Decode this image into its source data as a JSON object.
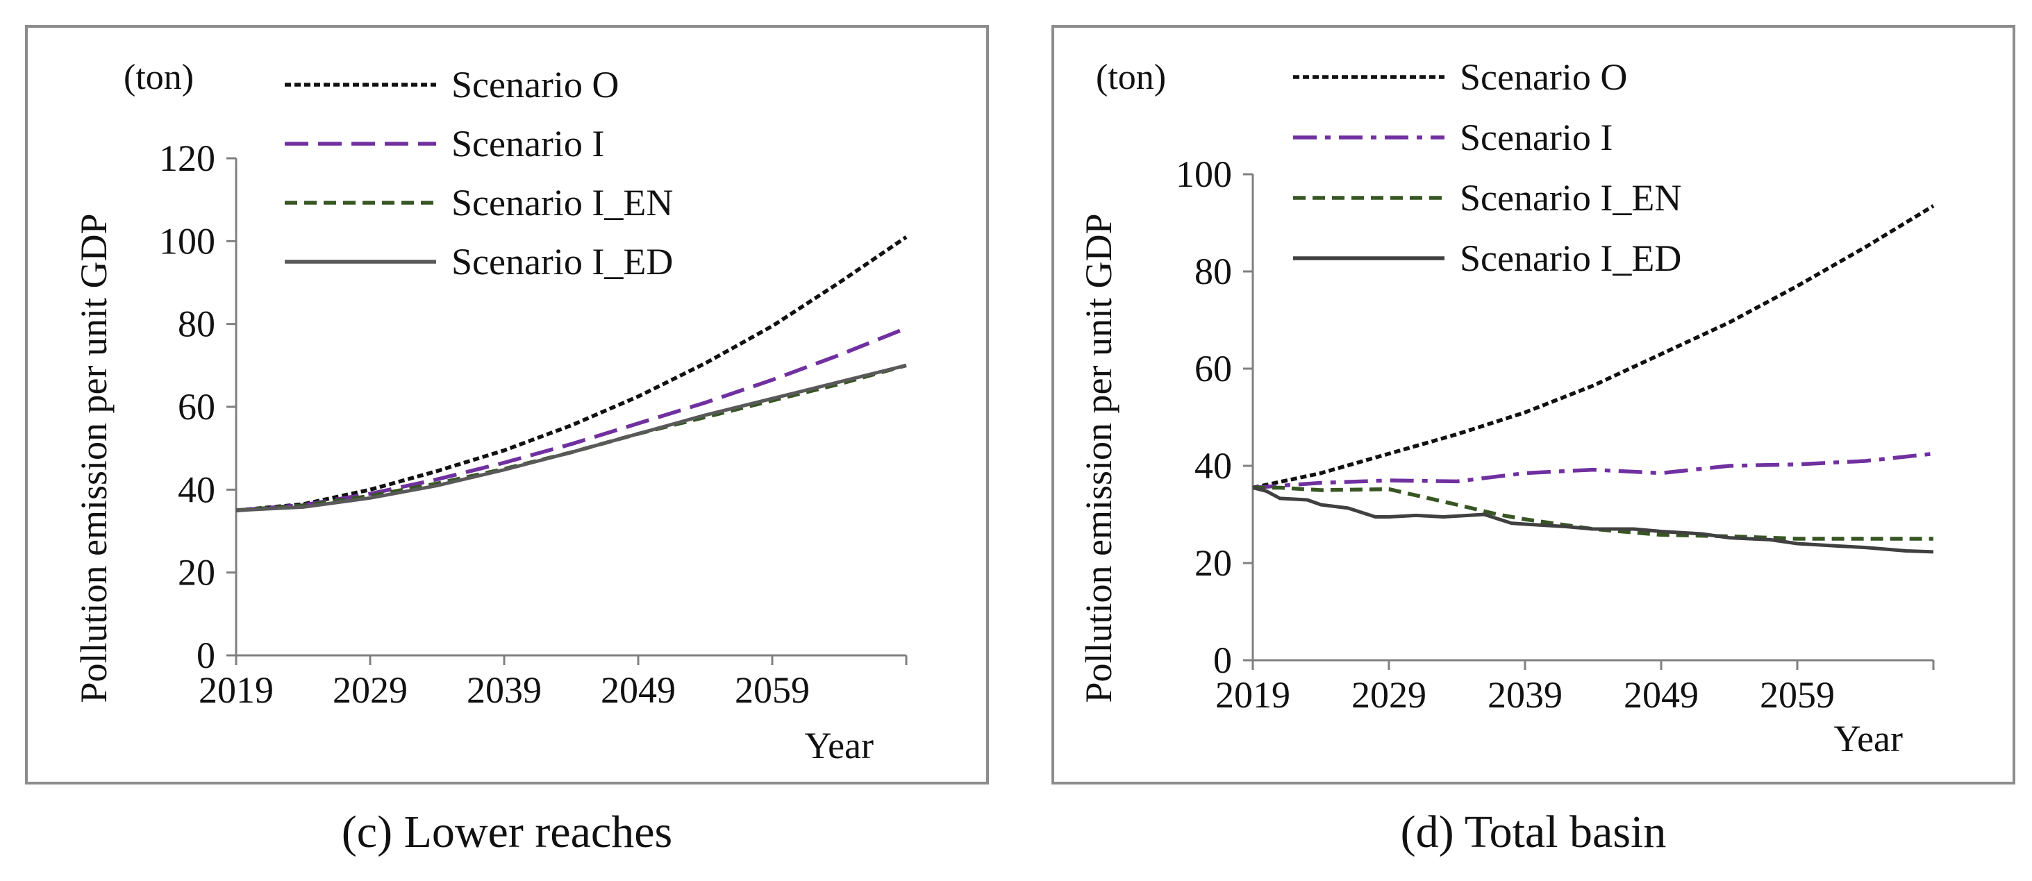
{
  "chart_data": [
    {
      "type": "line",
      "caption": "(c) Lower reaches",
      "unit_label": "(ton)",
      "ylabel": "Pollution emission per unit GDP",
      "xlabel": "Year",
      "ylim": [
        0,
        120
      ],
      "yticks": [
        0,
        20,
        40,
        60,
        80,
        100,
        120
      ],
      "xlim": [
        2019,
        2069
      ],
      "xticks": [
        2019,
        2029,
        2039,
        2049,
        2059
      ],
      "legend_position": "top-left",
      "grid": false,
      "series": [
        {
          "name": "Scenario O",
          "color": "#111111",
          "dash": "dotted",
          "x": [
            2019,
            2024,
            2029,
            2034,
            2039,
            2044,
            2049,
            2054,
            2059,
            2064,
            2069
          ],
          "y": [
            35,
            36.5,
            40,
            44.5,
            49.5,
            55.5,
            62.5,
            70.5,
            79.5,
            90,
            101
          ]
        },
        {
          "name": "Scenario I",
          "color": "#7030a0",
          "dash": "long-dash",
          "x": [
            2019,
            2024,
            2029,
            2034,
            2039,
            2044,
            2049,
            2054,
            2059,
            2064,
            2069
          ],
          "y": [
            35,
            36.3,
            39,
            42.5,
            46.5,
            51,
            56,
            61,
            66.5,
            72.5,
            79
          ]
        },
        {
          "name": "Scenario I_EN",
          "color": "#375623",
          "dash": "short-dash",
          "x": [
            2019,
            2024,
            2029,
            2034,
            2039,
            2044,
            2049,
            2054,
            2059,
            2064,
            2069
          ],
          "y": [
            35,
            36.2,
            38.5,
            41.5,
            45,
            49,
            53.5,
            57.5,
            61.5,
            65.5,
            70
          ]
        },
        {
          "name": "Scenario I_ED",
          "color": "#595959",
          "dash": "solid",
          "x": [
            2019,
            2024,
            2029,
            2034,
            2039,
            2044,
            2049,
            2054,
            2059,
            2064,
            2069
          ],
          "y": [
            35,
            35.8,
            38,
            41,
            44.8,
            49,
            53.5,
            58,
            62,
            66,
            70
          ]
        }
      ]
    },
    {
      "type": "line",
      "caption": "(d) Total basin",
      "unit_label": "(ton)",
      "ylabel": "Pollution emission per unit GDP",
      "xlabel": "Year",
      "ylim": [
        0,
        100
      ],
      "yticks": [
        0,
        20,
        40,
        60,
        80,
        100
      ],
      "xlim": [
        2019,
        2069
      ],
      "xticks": [
        2019,
        2029,
        2039,
        2049,
        2059
      ],
      "legend_position": "top-left",
      "grid": false,
      "series": [
        {
          "name": "Scenario O",
          "color": "#111111",
          "dash": "dotted",
          "x": [
            2019,
            2024,
            2029,
            2034,
            2039,
            2044,
            2049,
            2054,
            2059,
            2064,
            2069
          ],
          "y": [
            35.5,
            38.5,
            42.5,
            46.5,
            51,
            56.5,
            63,
            69.5,
            77,
            85,
            93.5
          ]
        },
        {
          "name": "Scenario I",
          "color": "#7030a0",
          "dash": "long-dash-dot",
          "x": [
            2019,
            2024,
            2029,
            2034,
            2039,
            2044,
            2049,
            2054,
            2059,
            2064,
            2069
          ],
          "y": [
            35.5,
            36.5,
            37,
            36.8,
            38.5,
            39.2,
            38.5,
            40,
            40.3,
            41,
            42.5
          ]
        },
        {
          "name": "Scenario I_EN",
          "color": "#375623",
          "dash": "short-dash",
          "x": [
            2019,
            2021,
            2024,
            2029,
            2034,
            2037,
            2039,
            2044,
            2049,
            2054,
            2059,
            2064,
            2069
          ],
          "y": [
            35.5,
            35.5,
            35,
            35.2,
            32,
            30,
            29,
            27,
            25.8,
            25.5,
            25,
            25,
            25
          ]
        },
        {
          "name": "Scenario I_ED",
          "color": "#404040",
          "dash": "solid",
          "x": [
            2019,
            2020,
            2021,
            2023,
            2024,
            2026,
            2028,
            2029,
            2031,
            2033,
            2036,
            2038,
            2039,
            2042,
            2044,
            2047,
            2049,
            2052,
            2054,
            2057,
            2059,
            2062,
            2064,
            2067,
            2069
          ],
          "y": [
            35.5,
            34.8,
            33.3,
            33,
            32,
            31.3,
            29.5,
            29.5,
            29.8,
            29.5,
            30,
            28.2,
            28,
            27.5,
            27,
            27,
            26.5,
            26,
            25.2,
            24.8,
            24,
            23.5,
            23.2,
            22.5,
            22.3
          ]
        }
      ]
    }
  ]
}
